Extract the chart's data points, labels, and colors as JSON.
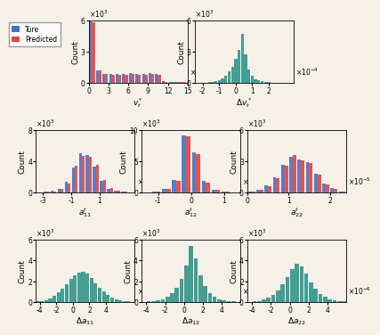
{
  "teal_color": "#3a9a8f",
  "blue_color": "#4472c4",
  "red_color": "#e84040",
  "background": "#f5f0e8",
  "vt_blue": [
    5900,
    1200,
    900,
    850,
    850,
    850,
    950,
    850,
    850,
    950,
    850,
    200,
    100
  ],
  "vt_red": [
    5800,
    1200,
    850,
    800,
    800,
    800,
    900,
    800,
    800,
    900,
    800,
    150,
    80
  ],
  "vt_xedges": [
    0,
    1,
    2,
    3,
    4,
    5,
    6,
    7,
    8,
    9,
    10,
    11,
    12,
    15
  ],
  "vt_xticks": [
    0,
    3,
    6,
    9,
    12,
    15
  ],
  "vt_xlabel": "$v_t^*$",
  "vt_ylabel": "Count",
  "vt_ylim": [
    0,
    6000
  ],
  "vt_yticks": [
    0,
    3000,
    6000
  ],
  "vt_ytick_labels": [
    "0",
    "3",
    "6"
  ],
  "vt_xscale_label": "$\\times10^{-4}$",
  "vt_yscale_label": "$\\times10^{3}$",
  "dvt_teal": [
    20,
    30,
    40,
    60,
    80,
    120,
    180,
    280,
    450,
    700,
    1100,
    1600,
    2300,
    3200,
    4700,
    2800,
    1300,
    700,
    400,
    250,
    160,
    100,
    70,
    50,
    40,
    30,
    25,
    20,
    15,
    12
  ],
  "dvt_xedges": [
    -2.5,
    -2.3,
    -2.1,
    -1.9,
    -1.7,
    -1.5,
    -1.3,
    -1.1,
    -0.9,
    -0.7,
    -0.5,
    -0.3,
    -0.1,
    0.1,
    0.3,
    0.5,
    0.7,
    0.9,
    1.1,
    1.3,
    1.5,
    1.7,
    1.9,
    2.1,
    2.3,
    2.5,
    2.7,
    2.9,
    3.1,
    3.3,
    3.5
  ],
  "dvt_xticks": [
    -2,
    -1,
    0,
    1,
    2
  ],
  "dvt_xlabel": "$\\Delta v_t^*$",
  "dvt_ylabel": "Count",
  "dvt_ylim": [
    0,
    6000
  ],
  "dvt_yticks": [
    0,
    3000,
    6000
  ],
  "dvt_ytick_labels": [
    "0",
    "3",
    "6"
  ],
  "dvt_xscale_label": "$\\times10^{-4}$",
  "dvt_yscale_label": "$\\times10^{3}$",
  "a11_blue": [
    50,
    100,
    200,
    500,
    1400,
    3200,
    5000,
    4800,
    3300,
    1500,
    500,
    200,
    100,
    50
  ],
  "a11_red": [
    40,
    80,
    180,
    450,
    1200,
    3400,
    4700,
    4600,
    3500,
    1600,
    600,
    250,
    120,
    40
  ],
  "a11_xedges": [
    -3.5,
    -3.0,
    -2.5,
    -2.0,
    -1.5,
    -1.0,
    -0.5,
    0.0,
    0.5,
    1.0,
    1.5,
    2.0,
    2.5,
    3.0,
    3.5
  ],
  "a11_xticks": [
    -3,
    -1,
    1
  ],
  "a11_xlabel": "$a_{11}^t$",
  "a11_ylabel": "Count",
  "a11_ylim": [
    0,
    8000
  ],
  "a11_yticks": [
    0,
    4000,
    8000
  ],
  "a11_ytick_labels": [
    "0",
    "4",
    "8"
  ],
  "a11_xscale_label": "$\\times10^{-5}$",
  "a11_yscale_label": "$\\times10^{3}$",
  "a12_blue": [
    50,
    150,
    600,
    2000,
    9200,
    6500,
    1800,
    500,
    150,
    50
  ],
  "a12_red": [
    40,
    120,
    550,
    1800,
    9000,
    6200,
    1600,
    450,
    130,
    40
  ],
  "a12_xedges": [
    -1.5,
    -1.2,
    -0.9,
    -0.6,
    -0.3,
    0.0,
    0.3,
    0.6,
    0.9,
    1.2,
    1.5
  ],
  "a12_xticks": [
    -1,
    0,
    1
  ],
  "a12_xlabel": "$a_{12}^t$",
  "a12_ylabel": "Count",
  "a12_ylim": [
    0,
    10000
  ],
  "a12_yticks": [
    0,
    5000,
    10000
  ],
  "a12_ytick_labels": [
    "0",
    "5",
    "10"
  ],
  "a12_xscale_label": "$\\times10^{-5}$",
  "a12_yscale_label": "$\\times10^{3}$",
  "a22_blue": [
    100,
    300,
    700,
    1500,
    2700,
    3400,
    3200,
    2900,
    1800,
    900,
    400,
    100
  ],
  "a22_red": [
    80,
    250,
    650,
    1400,
    2600,
    3600,
    3100,
    2800,
    1700,
    800,
    350,
    80
  ],
  "a22_xedges": [
    0.0,
    0.2,
    0.4,
    0.6,
    0.8,
    1.0,
    1.2,
    1.4,
    1.6,
    1.8,
    2.0,
    2.2,
    2.4
  ],
  "a22_xticks": [
    0,
    1,
    2
  ],
  "a22_xlabel": "$a_{22}^t$",
  "a22_ylabel": "Count",
  "a22_ylim": [
    0,
    6000
  ],
  "a22_yticks": [
    0,
    3000,
    6000
  ],
  "a22_ytick_labels": [
    "0",
    "3",
    "6"
  ],
  "a22_xscale_label": "$\\times10^{-5}$",
  "a22_yscale_label": "$\\times10^{3}$",
  "da11_teal": [
    50,
    100,
    200,
    350,
    600,
    900,
    1300,
    1700,
    2200,
    2600,
    2800,
    2900,
    2700,
    2300,
    1800,
    1400,
    1000,
    700,
    450,
    280,
    170,
    100,
    60,
    35
  ],
  "da11_xedges": [
    -4.5,
    -4.0,
    -3.5,
    -3.0,
    -2.5,
    -2.0,
    -1.5,
    -1.0,
    -0.5,
    0.0,
    0.5,
    1.0,
    1.5,
    2.0,
    2.5,
    3.0,
    3.5,
    4.0,
    4.5,
    5.0,
    5.5,
    6.0,
    6.5,
    7.0,
    7.5
  ],
  "da11_xticks": [
    -4,
    -2,
    0,
    2,
    4
  ],
  "da11_xlabel": "$\\Delta a_{11}$",
  "da11_ylabel": "Count",
  "da11_ylim": [
    0,
    6000
  ],
  "da11_yticks": [
    0,
    2000,
    4000,
    6000
  ],
  "da11_ytick_labels": [
    "0",
    "2",
    "4",
    "6"
  ],
  "da11_xscale_label": "$\\times10^{-6}$",
  "da11_yscale_label": "$\\times10^{3}$",
  "da12_teal": [
    20,
    40,
    80,
    150,
    280,
    500,
    850,
    1400,
    2200,
    3500,
    5400,
    4200,
    2600,
    1500,
    850,
    470,
    280,
    160,
    90,
    50,
    30
  ],
  "da12_xedges": [
    -4.5,
    -4.0,
    -3.5,
    -3.0,
    -2.5,
    -2.0,
    -1.5,
    -1.0,
    -0.5,
    0.0,
    0.5,
    1.0,
    1.5,
    2.0,
    2.5,
    3.0,
    3.5,
    4.0,
    4.5,
    5.0,
    5.5,
    6.0
  ],
  "da12_xticks": [
    -4,
    -2,
    0,
    2,
    4
  ],
  "da12_xlabel": "$\\Delta a_{12}$",
  "da12_ylabel": "Count",
  "da12_ylim": [
    0,
    6000
  ],
  "da12_yticks": [
    0,
    2000,
    4000,
    6000
  ],
  "da12_ytick_labels": [
    "0",
    "2",
    "4",
    "6"
  ],
  "da12_xscale_label": "$\\times10^{-6}$",
  "da12_yscale_label": "$\\times10^{3}$",
  "da22_teal": [
    30,
    60,
    120,
    230,
    420,
    720,
    1100,
    1700,
    2400,
    3200,
    3700,
    3400,
    2700,
    1900,
    1300,
    800,
    480,
    280,
    160,
    80,
    40
  ],
  "da22_xedges": [
    -4.5,
    -4.0,
    -3.5,
    -3.0,
    -2.5,
    -2.0,
    -1.5,
    -1.0,
    -0.5,
    0.0,
    0.5,
    1.0,
    1.5,
    2.0,
    2.5,
    3.0,
    3.5,
    4.0,
    4.5,
    5.0,
    5.5,
    6.0
  ],
  "da22_xticks": [
    -4,
    -2,
    0,
    2,
    4
  ],
  "da22_xlabel": "$\\Delta a_{22}$",
  "da22_ylabel": "Count",
  "da22_ylim": [
    0,
    6000
  ],
  "da22_yticks": [
    0,
    2000,
    4000,
    6000
  ],
  "da22_ytick_labels": [
    "0",
    "2",
    "4",
    "6"
  ],
  "da22_xscale_label": "$\\times10^{-6}$",
  "da22_yscale_label": "$\\times10^{3}$"
}
